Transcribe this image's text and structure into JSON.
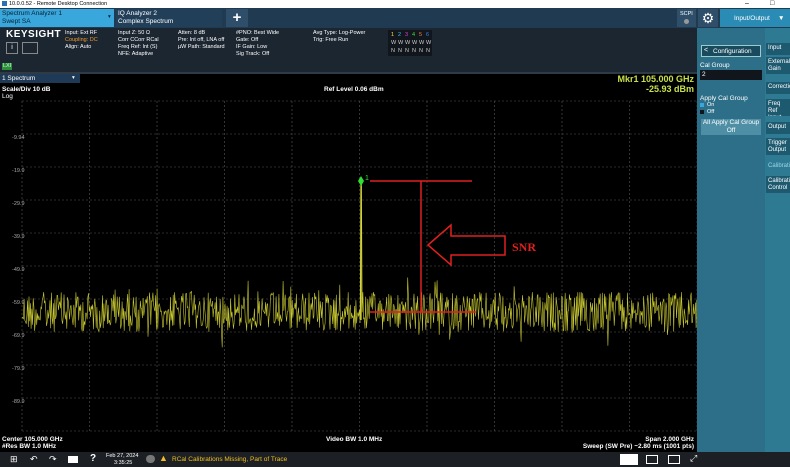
{
  "window": {
    "title": "10.0.0.52 - Remote Desktop Connection"
  },
  "tabs": [
    {
      "line1": "Spectrum Analyzer 1",
      "line2": "Swept SA"
    },
    {
      "line1": "IQ Analyzer 2",
      "line2": "Complex Spectrum"
    }
  ],
  "toolbar": {
    "scpi": "SCPI",
    "menu": "Input/Output"
  },
  "info": {
    "brand": "KEYSIGHT",
    "lxi": "LXI",
    "columns": [
      [
        "Input: Ext RF",
        "Coupling: DC",
        "Align: Auto"
      ],
      [
        "Input Z: 50 Ω",
        "Corr CCorr RCal",
        "Freq Ref: Int (S)",
        "NFE: Adaptive"
      ],
      [
        "Atten: 8 dB",
        "Pre: Int off, LNA off",
        "µW Path: Standard"
      ],
      [
        "#PNO: Best Wide",
        "Gate: Off",
        "IF Gain: Low",
        "Sig Track: Off"
      ],
      [
        "Avg Type: Log-Power",
        "Trig: Free Run"
      ]
    ],
    "traces": [
      "1",
      "2",
      "3",
      "4",
      "5",
      "6"
    ],
    "trace_types": [
      "W",
      "W",
      "W",
      "W",
      "W",
      "W"
    ],
    "detectors": [
      "N",
      "N",
      "N",
      "N",
      "N",
      "N"
    ]
  },
  "window_label": "1 Spectrum",
  "plot": {
    "scale": "Scale/Div 10 dB",
    "log": "Log",
    "ref_level": "Ref Level 0.06 dBm",
    "marker_freq": "Mkr1 105.000 GHz",
    "marker_level": "-25.93 dBm",
    "marker_id": "1",
    "y_labels": [
      "-9.94",
      "-19.9",
      "-29.9",
      "-39.9",
      "-49.9",
      "-59.9",
      "-69.9",
      "-79.9",
      "-89.9"
    ],
    "center": "Center 105.000 GHz",
    "res_bw": "#Res BW 1.0 MHz",
    "video_bw": "Video BW 1.0 MHz",
    "span": "Span 2.000 GHz",
    "sweep": "Sweep (SW Pre) ~2.80 ms (1001 pts)",
    "annotation": "SNR"
  },
  "panel": {
    "back": "Configuration",
    "cal_group_label": "Cal Group",
    "cal_group_value": "2",
    "apply_label": "Apply Cal Group",
    "options": [
      "On",
      "Off"
    ],
    "button": "All Apply Cal Group Off"
  },
  "menu": [
    "Input",
    "External Gain",
    "Corrections",
    "Freq Ref Input",
    "Output",
    "Trigger Output",
    "Calibration",
    "Calibration Control"
  ],
  "taskbar": {
    "date": "Feb 27, 2024",
    "time": "3:35:25",
    "alert": "RCal Calibrations Missing, Part of Trace"
  }
}
